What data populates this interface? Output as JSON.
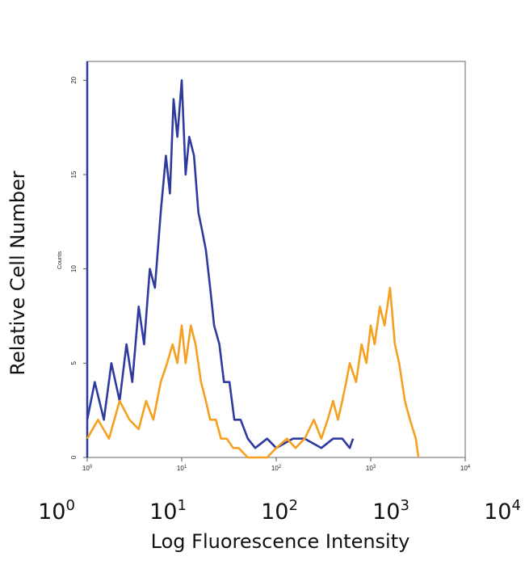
{
  "chart_data": {
    "type": "line",
    "ylabel": "Relative Cell Number",
    "inner_ylabel": "Counts",
    "xlabel": "Log Fluorescence Intensity",
    "xscale": "log",
    "xlim": [
      1,
      10000
    ],
    "ylim": [
      0,
      21
    ],
    "x_ticks": [
      {
        "base": "10",
        "exp": "0"
      },
      {
        "base": "10",
        "exp": "1"
      },
      {
        "base": "10",
        "exp": "2"
      },
      {
        "base": "10",
        "exp": "3"
      },
      {
        "base": "10",
        "exp": "4"
      }
    ],
    "y_ticks": [
      "0",
      "5",
      "10",
      "15",
      "20"
    ],
    "grid": false,
    "series": [
      {
        "color": "#2e3a9e",
        "x": [
          1,
          1.2,
          1.5,
          1.8,
          2.2,
          2.6,
          3.0,
          3.5,
          4.0,
          4.6,
          5.2,
          6.0,
          6.8,
          7.5,
          8.2,
          9.0,
          10,
          11,
          12,
          13.5,
          15,
          16.5,
          18,
          20,
          22,
          25,
          28,
          32,
          36,
          42,
          50,
          60,
          80,
          100,
          150,
          200,
          300,
          400,
          500,
          600,
          650
        ],
        "values": [
          2,
          4,
          2,
          5,
          3,
          6,
          4,
          8,
          6,
          10,
          9,
          13,
          16,
          14,
          19,
          17,
          20,
          15,
          17,
          16,
          13,
          12,
          11,
          9,
          7,
          6,
          4,
          4,
          2,
          2,
          1,
          0.5,
          1,
          0.5,
          1,
          1,
          0.5,
          1,
          1,
          0.5,
          1
        ]
      },
      {
        "color": "#f5a020",
        "x": [
          1,
          1.3,
          1.7,
          2.2,
          2.8,
          3.5,
          4.2,
          5.0,
          6.0,
          7.0,
          8.0,
          9.0,
          10,
          11,
          12.5,
          14,
          16,
          18,
          20,
          23,
          26,
          30,
          35,
          40,
          50,
          60,
          80,
          100,
          130,
          160,
          200,
          250,
          300,
          350,
          400,
          450,
          500,
          550,
          600,
          700,
          800,
          900,
          1000,
          1100,
          1250,
          1400,
          1600,
          1800,
          2000,
          2300,
          2600,
          3000,
          3200
        ],
        "values": [
          1,
          2,
          1,
          3,
          2,
          1.5,
          3,
          2,
          4,
          5,
          6,
          5,
          7,
          5,
          7,
          6,
          4,
          3,
          2,
          2,
          1,
          1,
          0.5,
          0.5,
          0,
          0,
          0,
          0.5,
          1,
          0.5,
          1,
          2,
          1,
          2,
          3,
          2,
          3,
          4,
          5,
          4,
          6,
          5,
          7,
          6,
          8,
          7,
          9,
          6,
          5,
          3,
          2,
          1,
          0
        ]
      }
    ]
  }
}
